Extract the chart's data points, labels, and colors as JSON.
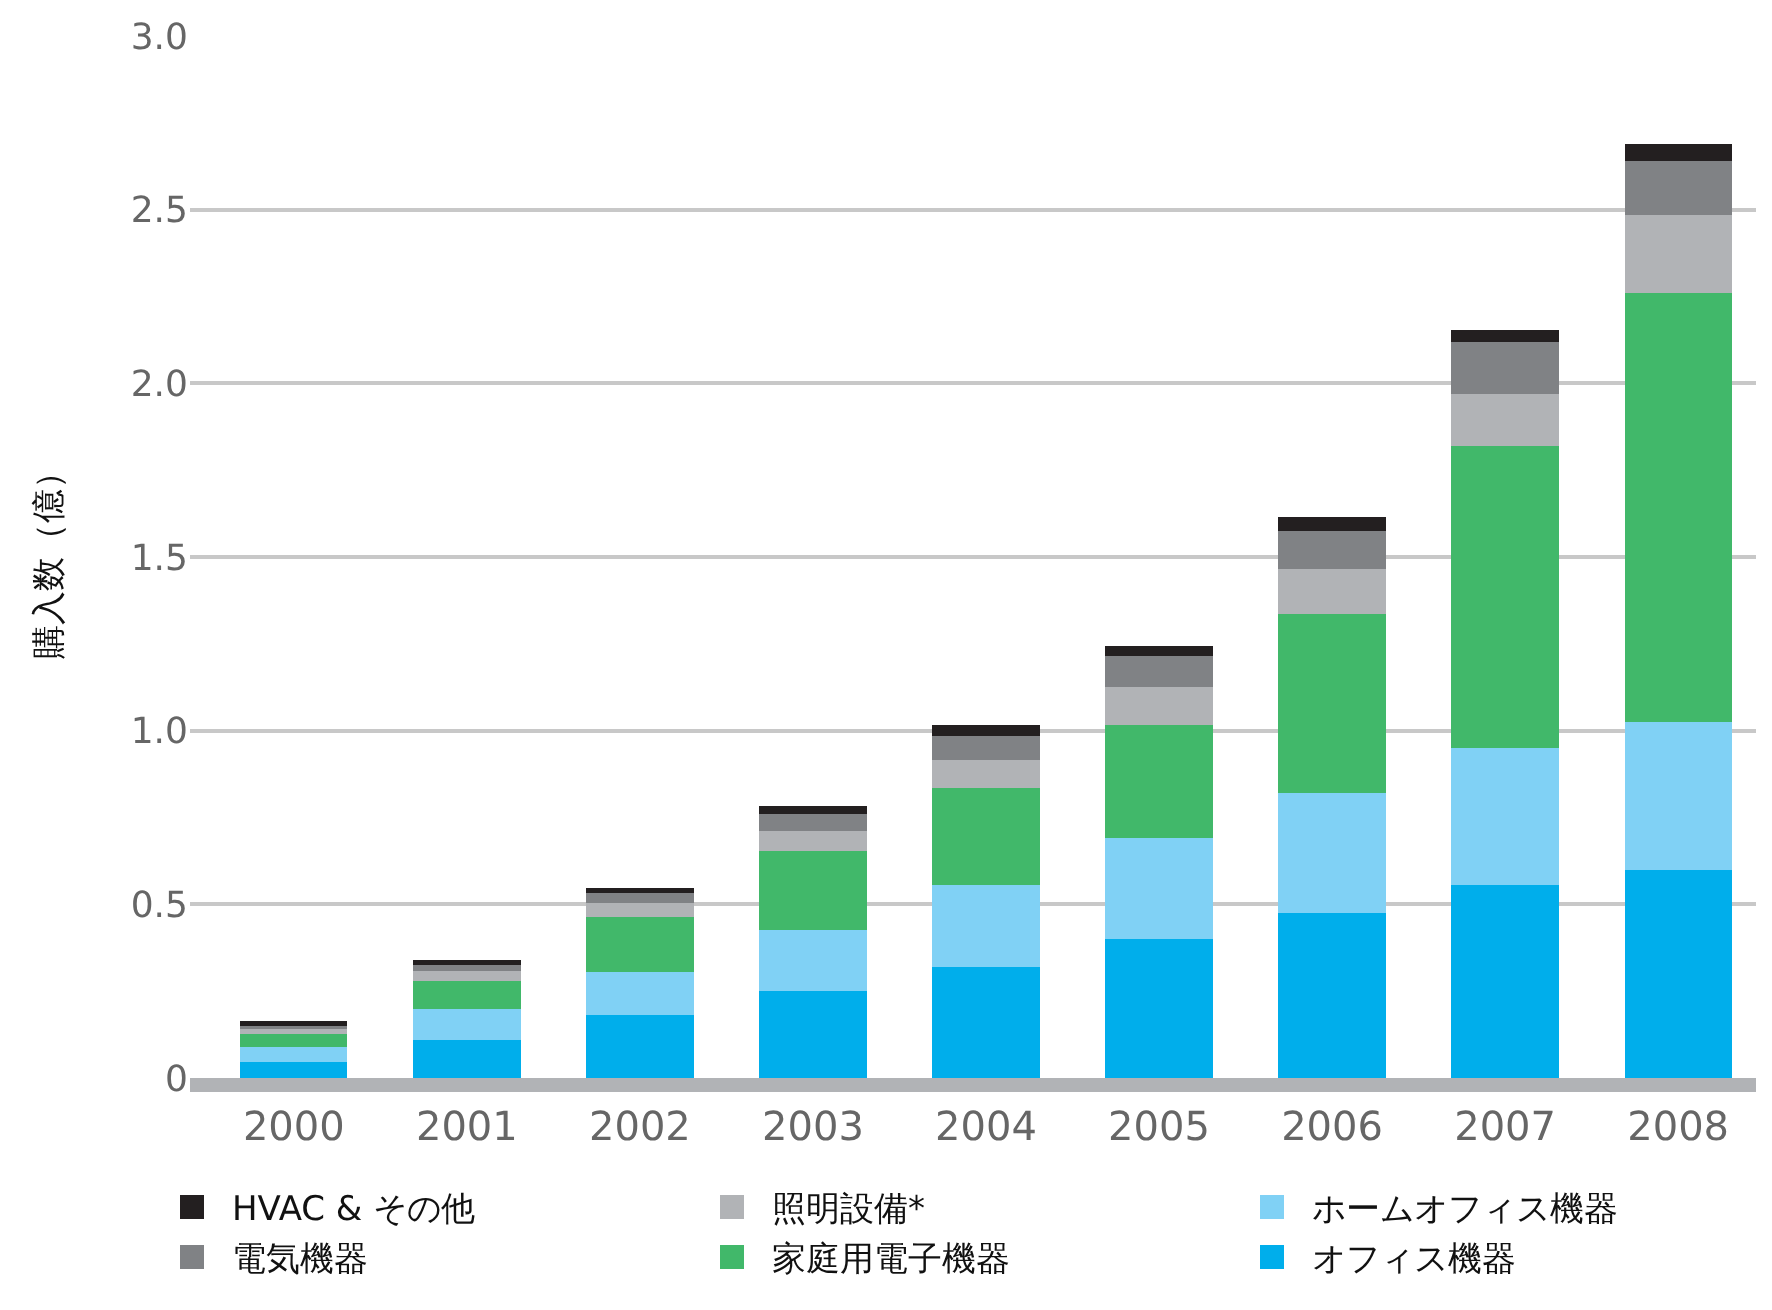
{
  "chart_data": {
    "type": "bar",
    "stacked": true,
    "ylabel": "購入数（億）",
    "categories": [
      "2000",
      "2001",
      "2002",
      "2003",
      "2004",
      "2005",
      "2006",
      "2007",
      "2008"
    ],
    "series": [
      {
        "name": "オフィス機器",
        "color": "#00aeeb",
        "values": [
          0.045,
          0.11,
          0.18,
          0.25,
          0.32,
          0.4,
          0.475,
          0.555,
          0.6
        ]
      },
      {
        "name": "ホームオフィス機器",
        "color": "#80d1f5",
        "values": [
          0.045,
          0.09,
          0.125,
          0.175,
          0.235,
          0.29,
          0.345,
          0.395,
          0.425
        ]
      },
      {
        "name": "家庭用電子機器",
        "color": "#41b86a",
        "values": [
          0.04,
          0.08,
          0.16,
          0.23,
          0.28,
          0.325,
          0.515,
          0.87,
          1.235
        ]
      },
      {
        "name": "照明設備*",
        "color": "#b1b3b6",
        "values": [
          0.01,
          0.027,
          0.038,
          0.055,
          0.08,
          0.11,
          0.13,
          0.15,
          0.225
        ]
      },
      {
        "name": "電気機器",
        "color": "#808285",
        "values": [
          0.015,
          0.017,
          0.03,
          0.05,
          0.07,
          0.09,
          0.11,
          0.15,
          0.155
        ]
      },
      {
        "name": "HVAC & その他",
        "color": "#231f20",
        "values": [
          0.01,
          0.015,
          0.014,
          0.023,
          0.03,
          0.03,
          0.04,
          0.035,
          0.05
        ]
      }
    ],
    "ylim": [
      0,
      3.0
    ],
    "yticks": [
      0,
      {
        "value": 0.5,
        "label": "0.5"
      },
      {
        "value": 1,
        "label": "1.0"
      },
      {
        "value": 1.5,
        "label": "1.5"
      },
      {
        "value": 2,
        "label": "2.0"
      },
      {
        "value": 2.5,
        "label": "2.5"
      },
      {
        "value": 3,
        "label": "3.0"
      }
    ],
    "grid": "y",
    "legend": "bottom"
  }
}
